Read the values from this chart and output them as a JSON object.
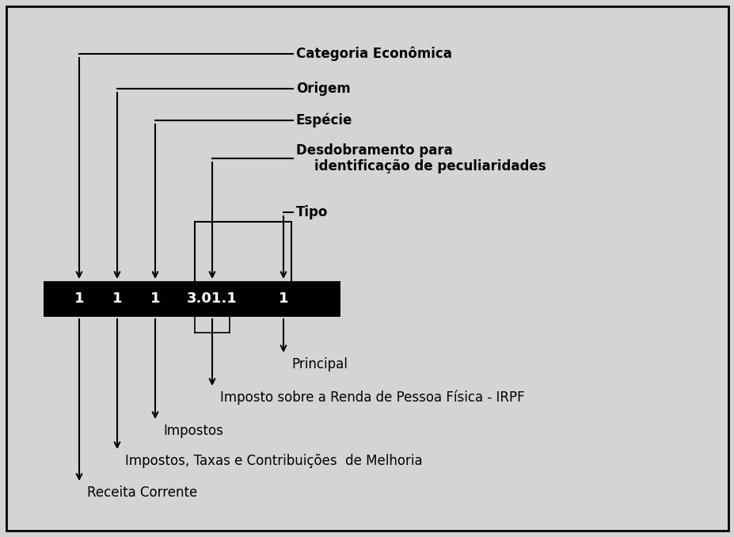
{
  "background_color": "#d4d4d4",
  "border_color": "#000000",
  "box_bg": "#000000",
  "box_text_color": "#ffffff",
  "fig_width": 9.28,
  "fig_height": 6.78,
  "dpi": 100,
  "box_labels": [
    "1",
    "1",
    "1",
    "3.01.1",
    "1"
  ],
  "top_labels": [
    "Categoria Econômica",
    "Origem",
    "Espécie",
    "Desdobramento para\n    identificação de peculiaridades",
    "Tipo"
  ],
  "bottom_labels": [
    "Principal",
    "Imposto sobre a Renda de Pessoa Física - IRPF",
    "Impostos",
    "Impostos, Taxas e Contribuições  de Melhoria",
    "Receita Corrente"
  ]
}
